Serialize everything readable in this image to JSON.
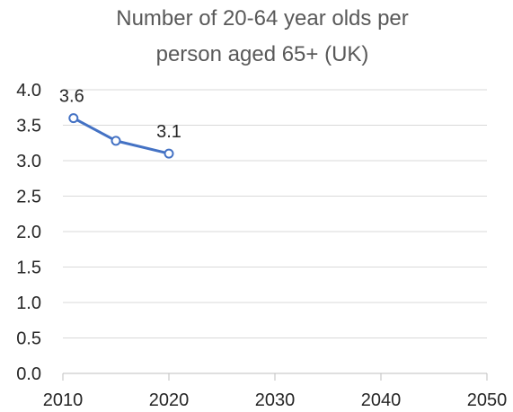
{
  "chart_data": {
    "type": "line",
    "title_lines": [
      "Number of 20-64 year olds per",
      "person aged 65+ (UK)"
    ],
    "xlabel": "",
    "ylabel": "",
    "xlim": [
      2010,
      2050
    ],
    "ylim": [
      0,
      4
    ],
    "x_ticks": [
      2010,
      2020,
      2030,
      2040,
      2050
    ],
    "y_ticks": [
      0.0,
      0.5,
      1.0,
      1.5,
      2.0,
      2.5,
      3.0,
      3.5,
      4.0
    ],
    "y_tick_labels": [
      "0.0",
      "0.5",
      "1.0",
      "1.5",
      "2.0",
      "2.5",
      "3.0",
      "3.5",
      "4.0"
    ],
    "grid": "horizontal",
    "legend": "none",
    "series": [
      {
        "x": [
          2011,
          2015,
          2020
        ],
        "y": [
          3.6,
          3.28,
          3.1
        ],
        "data_labels": [
          "3.6",
          "",
          "3.1"
        ],
        "color": "#4472C4"
      }
    ]
  }
}
